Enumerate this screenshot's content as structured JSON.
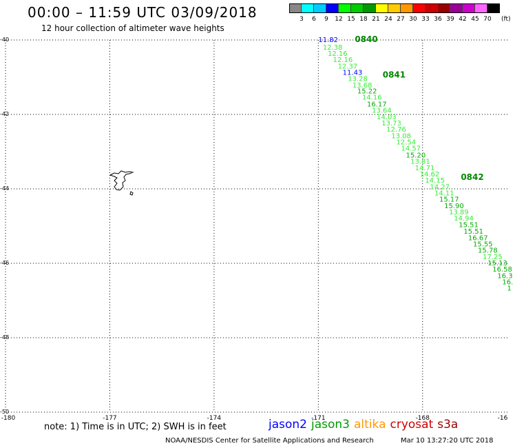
{
  "header": {
    "title": "00:00 – 11:59 UTC 03/09/2018",
    "subtitle": "12 hour collection of altimeter wave heights"
  },
  "colorbar": {
    "colors": [
      "#888888",
      "#00ffff",
      "#00ccff",
      "#0000ff",
      "#00ff00",
      "#00cc00",
      "#009900",
      "#ffff00",
      "#ffcc00",
      "#ff9900",
      "#ff0000",
      "#cc0000",
      "#990000",
      "#990099",
      "#cc00cc",
      "#ff66ff",
      "#000000"
    ],
    "labels": [
      "3",
      "6",
      "9",
      "12",
      "15",
      "18",
      "21",
      "24",
      "27",
      "30",
      "33",
      "36",
      "39",
      "42",
      "45",
      "70"
    ],
    "unit": "(ft)"
  },
  "axes": {
    "lat_labels": [
      "-40",
      "-42",
      "-44",
      "-46",
      "-48",
      "-50"
    ],
    "lon_labels": [
      "-180",
      "-177",
      "-174",
      "-171",
      "-168",
      "-16"
    ]
  },
  "track": {
    "times": [
      {
        "label": "0840",
        "lat": -40.0,
        "lon": -169.95
      },
      {
        "label": "0841",
        "lat": -40.95,
        "lon": -169.15
      },
      {
        "label": "0842",
        "lat": -43.7,
        "lon": -166.9
      }
    ],
    "points": [
      {
        "v": "11.82",
        "lat": -40.0,
        "lon": -171.0,
        "color": "#0000ff"
      },
      {
        "v": "12.38",
        "lat": -40.2,
        "lon": -170.87,
        "color": "#33ee33"
      },
      {
        "v": "12.16",
        "lat": -40.37,
        "lon": -170.73,
        "color": "#33ee33"
      },
      {
        "v": "12.16",
        "lat": -40.54,
        "lon": -170.58,
        "color": "#33ee33"
      },
      {
        "v": "12.37",
        "lat": -40.71,
        "lon": -170.44,
        "color": "#33ee33"
      },
      {
        "v": "11.43",
        "lat": -40.88,
        "lon": -170.3,
        "color": "#0000ff"
      },
      {
        "v": "13.28",
        "lat": -41.05,
        "lon": -170.15,
        "color": "#33ee33"
      },
      {
        "v": "13.68",
        "lat": -41.22,
        "lon": -170.02,
        "color": "#33ee33"
      },
      {
        "v": "15.22",
        "lat": -41.38,
        "lon": -169.88,
        "color": "#00aa00"
      },
      {
        "v": "14.16",
        "lat": -41.55,
        "lon": -169.74,
        "color": "#33ee33"
      },
      {
        "v": "16.17",
        "lat": -41.73,
        "lon": -169.6,
        "color": "#00aa00"
      },
      {
        "v": "13.64",
        "lat": -41.9,
        "lon": -169.46,
        "color": "#33ee33"
      },
      {
        "v": "14.03",
        "lat": -42.07,
        "lon": -169.32,
        "color": "#33ee33"
      },
      {
        "v": "13.73",
        "lat": -42.24,
        "lon": -169.18,
        "color": "#33ee33"
      },
      {
        "v": "12.76",
        "lat": -42.41,
        "lon": -169.04,
        "color": "#33ee33"
      },
      {
        "v": "13.08",
        "lat": -42.58,
        "lon": -168.9,
        "color": "#33ee33"
      },
      {
        "v": "12.54",
        "lat": -42.75,
        "lon": -168.76,
        "color": "#33ee33"
      },
      {
        "v": "14.57",
        "lat": -42.92,
        "lon": -168.62,
        "color": "#33ee33"
      },
      {
        "v": "15.20",
        "lat": -43.1,
        "lon": -168.48,
        "color": "#00aa00"
      },
      {
        "v": "13.81",
        "lat": -43.27,
        "lon": -168.35,
        "color": "#33ee33"
      },
      {
        "v": "14.71",
        "lat": -43.44,
        "lon": -168.22,
        "color": "#33ee33"
      },
      {
        "v": "14.62",
        "lat": -43.61,
        "lon": -168.08,
        "color": "#33ee33"
      },
      {
        "v": "14.15",
        "lat": -43.78,
        "lon": -167.93,
        "color": "#33ee33"
      },
      {
        "v": "14.27",
        "lat": -43.95,
        "lon": -167.79,
        "color": "#33ee33"
      },
      {
        "v": "14.11",
        "lat": -44.12,
        "lon": -167.66,
        "color": "#33ee33"
      },
      {
        "v": "15.17",
        "lat": -44.29,
        "lon": -167.52,
        "color": "#00aa00"
      },
      {
        "v": "15.90",
        "lat": -44.46,
        "lon": -167.38,
        "color": "#00aa00"
      },
      {
        "v": "13.89",
        "lat": -44.63,
        "lon": -167.24,
        "color": "#33ee33"
      },
      {
        "v": "14.94",
        "lat": -44.8,
        "lon": -167.1,
        "color": "#33ee33"
      },
      {
        "v": "15.51",
        "lat": -44.97,
        "lon": -166.96,
        "color": "#00aa00"
      },
      {
        "v": "15.51",
        "lat": -45.15,
        "lon": -166.82,
        "color": "#00aa00"
      },
      {
        "v": "16.67",
        "lat": -45.32,
        "lon": -166.69,
        "color": "#00aa00"
      },
      {
        "v": "15.55",
        "lat": -45.49,
        "lon": -166.55,
        "color": "#00aa00"
      },
      {
        "v": "15.78",
        "lat": -45.66,
        "lon": -166.41,
        "color": "#00aa00"
      },
      {
        "v": "17.25",
        "lat": -45.83,
        "lon": -166.27,
        "color": "#33ee33"
      },
      {
        "v": "15.13",
        "lat": -46.0,
        "lon": -166.13,
        "color": "#00aa00"
      },
      {
        "v": "16.58",
        "lat": -46.17,
        "lon": -165.99,
        "color": "#00aa00"
      },
      {
        "v": "16.3",
        "lat": -46.34,
        "lon": -165.85,
        "color": "#00aa00"
      },
      {
        "v": "16.",
        "lat": -46.51,
        "lon": -165.71,
        "color": "#00aa00"
      },
      {
        "v": "1",
        "lat": -46.68,
        "lon": -165.57,
        "color": "#00aa00"
      }
    ]
  },
  "footer": {
    "note": "note: 1) Time is in UTC; 2) SWH is in feet",
    "satellites": [
      {
        "name": "jason2",
        "color": "#0000ff"
      },
      {
        "name": "jason3",
        "color": "#009900"
      },
      {
        "name": "altika",
        "color": "#ff9900"
      },
      {
        "name": "cryosat",
        "color": "#cc0000"
      },
      {
        "name": "s3a",
        "color": "#990000"
      }
    ],
    "credit": "NOAA/NESDIS Center for Satellite Applications and Research",
    "timestamp": "Mar 10 13:27:20 UTC 2018"
  }
}
